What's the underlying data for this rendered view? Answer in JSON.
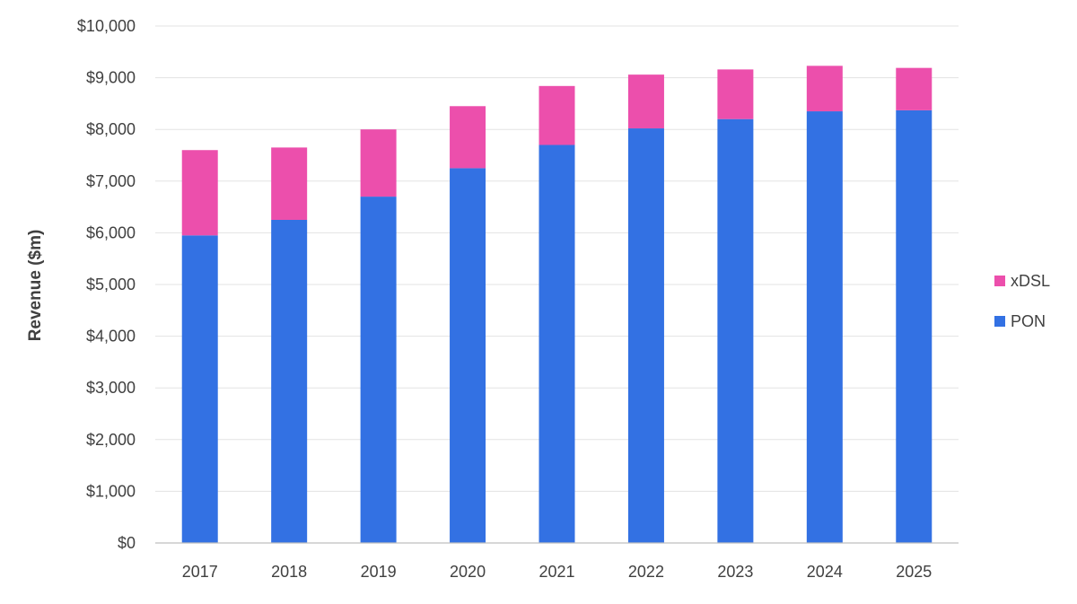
{
  "chart_data": {
    "type": "bar",
    "stacked": true,
    "title": "",
    "xlabel": "",
    "ylabel": "Revenue ($m)",
    "categories": [
      "2017",
      "2018",
      "2019",
      "2020",
      "2021",
      "2022",
      "2023",
      "2024",
      "2025"
    ],
    "series": [
      {
        "name": "PON",
        "color": "#3371E3",
        "values": [
          5950,
          6250,
          6700,
          7250,
          7700,
          8020,
          8200,
          8350,
          8370
        ]
      },
      {
        "name": "xDSL",
        "color": "#EC4FAC",
        "values": [
          1650,
          1400,
          1300,
          1200,
          1140,
          1040,
          960,
          880,
          820
        ]
      }
    ],
    "ylim": [
      0,
      10000
    ],
    "yticks": [
      0,
      1000,
      2000,
      3000,
      4000,
      5000,
      6000,
      7000,
      8000,
      9000,
      10000
    ],
    "ytick_labels": [
      "$0",
      "$1,000",
      "$2,000",
      "$3,000",
      "$4,000",
      "$5,000",
      "$6,000",
      "$7,000",
      "$8,000",
      "$9,000",
      "$10,000"
    ],
    "grid": true,
    "legend": {
      "placement": "right",
      "entries": [
        {
          "name": "xDSL",
          "color": "#EC4FAC"
        },
        {
          "name": "PON",
          "color": "#3371E3"
        }
      ]
    }
  }
}
